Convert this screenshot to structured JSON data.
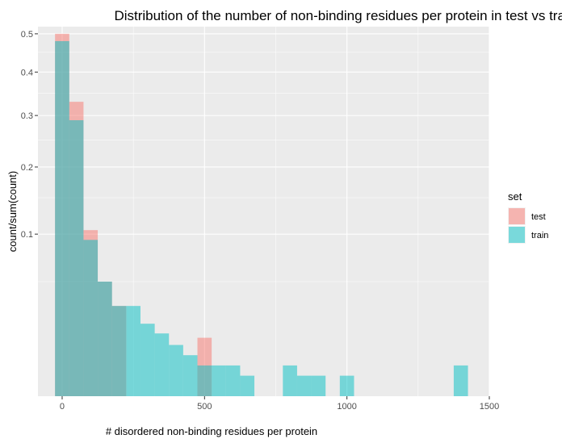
{
  "chart_data": {
    "type": "bar",
    "title": "Distribution of the number of non-binding residues per protein in test vs train set",
    "xlabel": "# disordered non-binding residues per protein",
    "ylabel": "count/sum(count)",
    "x_ticks": [
      0,
      500,
      1000,
      1500
    ],
    "x_tick_labels": [
      "0",
      "500",
      "1000",
      "1500"
    ],
    "y_ticks": [
      0.1,
      0.2,
      0.3,
      0.4,
      0.5
    ],
    "y_tick_labels": [
      "0.1",
      "0.2",
      "0.3",
      "0.4",
      "0.5"
    ],
    "y_scale": "sqrt",
    "xlim": [
      -85,
      1500
    ],
    "ylim": [
      0,
      0.52
    ],
    "bin_width": 50,
    "grid": true,
    "legend": {
      "title": "set",
      "position": "right"
    },
    "series": [
      {
        "name": "test",
        "color": "#F8766D",
        "bins": [
          {
            "x0": -25,
            "x1": 25,
            "value": 0.5
          },
          {
            "x0": 25,
            "x1": 75,
            "value": 0.33
          },
          {
            "x0": 75,
            "x1": 125,
            "value": 0.105
          },
          {
            "x0": 125,
            "x1": 175,
            "value": 0.05
          },
          {
            "x0": 175,
            "x1": 225,
            "value": 0.031
          },
          {
            "x0": 475,
            "x1": 525,
            "value": 0.013
          }
        ]
      },
      {
        "name": "train",
        "color": "#00BFC4",
        "bins": [
          {
            "x0": -25,
            "x1": 25,
            "value": 0.48
          },
          {
            "x0": 25,
            "x1": 75,
            "value": 0.29
          },
          {
            "x0": 75,
            "x1": 125,
            "value": 0.093
          },
          {
            "x0": 125,
            "x1": 175,
            "value": 0.05
          },
          {
            "x0": 175,
            "x1": 225,
            "value": 0.031
          },
          {
            "x0": 225,
            "x1": 275,
            "value": 0.031
          },
          {
            "x0": 275,
            "x1": 325,
            "value": 0.02
          },
          {
            "x0": 325,
            "x1": 375,
            "value": 0.015
          },
          {
            "x0": 375,
            "x1": 425,
            "value": 0.01
          },
          {
            "x0": 425,
            "x1": 475,
            "value": 0.0064
          },
          {
            "x0": 475,
            "x1": 525,
            "value": 0.0036
          },
          {
            "x0": 525,
            "x1": 575,
            "value": 0.0036
          },
          {
            "x0": 575,
            "x1": 625,
            "value": 0.0036
          },
          {
            "x0": 625,
            "x1": 675,
            "value": 0.0016
          },
          {
            "x0": 775,
            "x1": 825,
            "value": 0.0036
          },
          {
            "x0": 825,
            "x1": 875,
            "value": 0.0016
          },
          {
            "x0": 875,
            "x1": 925,
            "value": 0.0016
          },
          {
            "x0": 975,
            "x1": 1025,
            "value": 0.0016
          },
          {
            "x0": 1375,
            "x1": 1425,
            "value": 0.0036
          }
        ]
      }
    ]
  }
}
